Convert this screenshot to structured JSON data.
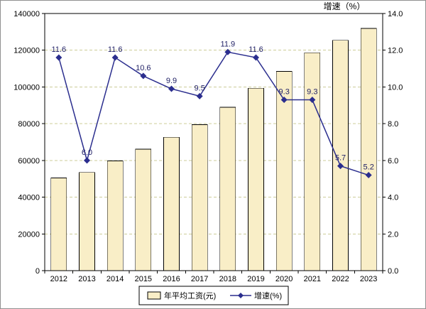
{
  "chart_data": {
    "type": "bar+line",
    "title": "",
    "right_axis_title": "增速（%）",
    "categories": [
      "2012",
      "2013",
      "2014",
      "2015",
      "2016",
      "2017",
      "2018",
      "2019",
      "2020",
      "2021",
      "2022",
      "2023"
    ],
    "series": [
      {
        "name": "年平均工资(元)",
        "type": "bar",
        "axis": "left",
        "values": [
          50500,
          53500,
          59700,
          66100,
          72600,
          79500,
          89000,
          99300,
          108500,
          118600,
          125400,
          131900
        ]
      },
      {
        "name": "增速(%)",
        "type": "line",
        "axis": "right",
        "values": [
          11.6,
          6.0,
          11.6,
          10.6,
          9.9,
          9.5,
          11.9,
          11.6,
          9.3,
          9.3,
          5.7,
          5.2
        ],
        "labels": [
          "11.6",
          "6.0",
          "11.6",
          "10.6",
          "9.9",
          "9.5",
          "11.9",
          "11.6",
          "9.3",
          "9.3",
          "5.7",
          "5.2"
        ]
      }
    ],
    "left_axis": {
      "min": 0,
      "max": 140000,
      "step": 20000,
      "tick_labels": [
        "0",
        "20000",
        "40000",
        "60000",
        "80000",
        "100000",
        "120000",
        "140000"
      ]
    },
    "right_axis": {
      "min": 0,
      "max": 14,
      "step": 2,
      "tick_labels": [
        "0.0",
        "2.0",
        "4.0",
        "6.0",
        "8.0",
        "10.0",
        "12.0",
        "14.0"
      ]
    },
    "legend": [
      {
        "label": "年平均工资(元)",
        "swatch": "bar"
      },
      {
        "label": "增速(%)",
        "swatch": "line-diamond"
      }
    ],
    "layout": {
      "grid": "dashed-horizontal",
      "legend_position": "bottom-center"
    },
    "colors": {
      "bar_fill": "#F9EEC7",
      "bar_stroke": "#000000",
      "line": "#2B2E8E",
      "grid": "#CCCC99",
      "point_label": "#222266",
      "axis_text": "#000000",
      "plot_border": "#000000"
    }
  }
}
